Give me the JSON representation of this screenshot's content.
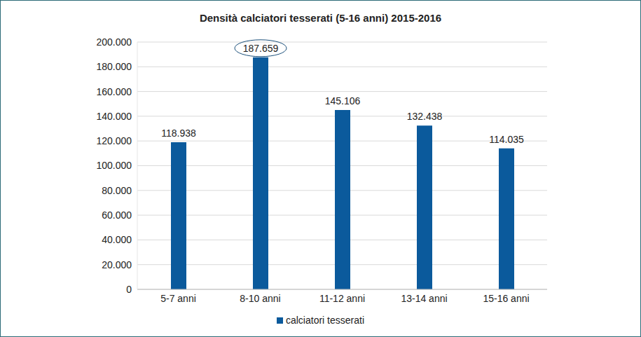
{
  "chart_data": {
    "type": "bar",
    "title": "Densità calciatori tesserati (5-16 anni) 2015-2016",
    "categories": [
      "5-7 anni",
      "8-10 anni",
      "11-12 anni",
      "13-14 anni",
      "15-16 anni"
    ],
    "series": [
      {
        "name": "calciatori tesserati",
        "color": "#0b5a9c",
        "values": [
          118938,
          187659,
          145106,
          132438,
          114035
        ],
        "value_labels": [
          "118.938",
          "187.659",
          "145.106",
          "132.438",
          "114.035"
        ]
      }
    ],
    "ylim": [
      0,
      200000
    ],
    "yticks": [
      {
        "value": 0,
        "label": "0"
      },
      {
        "value": 20000,
        "label": "20.000"
      },
      {
        "value": 40000,
        "label": "40.000"
      },
      {
        "value": 60000,
        "label": "60.000"
      },
      {
        "value": 80000,
        "label": "80.000"
      },
      {
        "value": 100000,
        "label": "100.000"
      },
      {
        "value": 120000,
        "label": "120.000"
      },
      {
        "value": 140000,
        "label": "140.000"
      },
      {
        "value": 160000,
        "label": "160.000"
      },
      {
        "value": 180000,
        "label": "180.000"
      },
      {
        "value": 200000,
        "label": "200.000"
      }
    ],
    "grid": true,
    "data_labels": true,
    "legend": "bottom"
  }
}
